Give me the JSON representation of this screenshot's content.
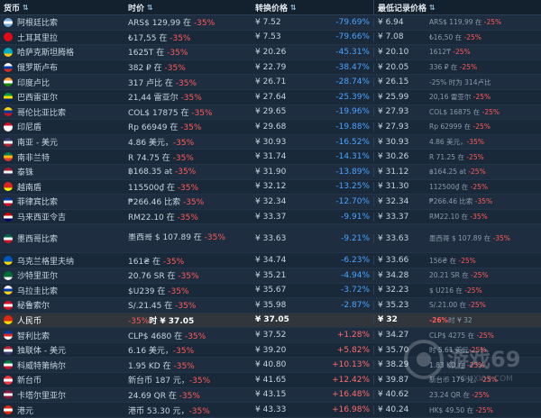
{
  "headers": {
    "currency": "货币",
    "price": "时价",
    "converted": "转换价格",
    "lowest": "最低记录价格"
  },
  "rows": [
    {
      "flag": [
        "#74acdf",
        "#ffffff",
        "#74acdf"
      ],
      "name": "阿根廷比索",
      "price": "ARS$ 129,99 在 ",
      "pdisc": "-35%",
      "conv": "¥ 7.52",
      "pct": "-79.69%",
      "pctType": "neg",
      "low": "¥ 6.94",
      "lowp": "ARS$ 119,99 在 ",
      "ldisc": "-25%"
    },
    {
      "flag": [
        "#e30a17",
        "#e30a17",
        "#e30a17"
      ],
      "name": "土耳其里拉",
      "price": "₺17,55 在 ",
      "pdisc": "-35%",
      "conv": "¥ 7.53",
      "pct": "-79.66%",
      "pctType": "neg",
      "low": "¥ 7.08",
      "lowp": "₺16,50 在 ",
      "ldisc": "-25%"
    },
    {
      "flag": [
        "#00abc2",
        "#00abc2",
        "#fec50c"
      ],
      "name": "哈萨克斯坦腾格",
      "price": "1625T 在 ",
      "pdisc": "-35%",
      "conv": "¥ 20.26",
      "pct": "-45.31%",
      "pctType": "neg",
      "low": "¥ 20.10",
      "lowp": "1612₸ ",
      "ldisc": "-25%"
    },
    {
      "flag": [
        "#ffffff",
        "#0039a6",
        "#d52b1e"
      ],
      "name": "俄罗斯卢布",
      "price": "382 ₽ 在 ",
      "pdisc": "-35%",
      "conv": "¥ 22.79",
      "pct": "-38.47%",
      "pctType": "neg",
      "low": "¥ 20.05",
      "lowp": "336 ₽ 在 ",
      "ldisc": "-25%"
    },
    {
      "flag": [
        "#ff9933",
        "#ffffff",
        "#138808"
      ],
      "name": "印度卢比",
      "price": "317 卢比 在 ",
      "pdisc": "-35%",
      "conv": "¥ 26.71",
      "pct": "-28.74%",
      "pctType": "neg",
      "low": "¥ 26.15",
      "lowp": "-25% 时为 314卢比",
      "ldisc": ""
    },
    {
      "flag": [
        "#009c3b",
        "#ffdf00",
        "#002776"
      ],
      "name": "巴西雷亚尔",
      "price": "21,44 雷亚尔 ",
      "pdisc": "-35%",
      "conv": "¥ 27.64",
      "pct": "-25.39%",
      "pctType": "neg",
      "low": "¥ 25.99",
      "lowp": "20,16 雷亚尔 ",
      "ldisc": "-25%"
    },
    {
      "flag": [
        "#fcd116",
        "#003893",
        "#ce1126"
      ],
      "name": "哥伦比亚比索",
      "price": "COL$ 17875 在 ",
      "pdisc": "-35%",
      "conv": "¥ 29.65",
      "pct": "-19.96%",
      "pctType": "neg",
      "low": "¥ 27.93",
      "lowp": "COL$ 16875 在 ",
      "ldisc": "-25%"
    },
    {
      "flag": [
        "#ce1126",
        "#ffffff",
        "#ffffff"
      ],
      "name": "印尼盾",
      "price": "Rp 66949 在 ",
      "pdisc": "-35%",
      "conv": "¥ 29.68",
      "pct": "-19.88%",
      "pctType": "neg",
      "low": "¥ 27.93",
      "lowp": "Rp 62999 在 ",
      "ldisc": "-25%"
    },
    {
      "flag": [
        "#3c3b6e",
        "#ffffff",
        "#b22234"
      ],
      "name": "南亚 - 美元",
      "price": "4.86 美元，",
      "pdisc": "-35%",
      "conv": "¥ 30.93",
      "pct": "-16.52%",
      "pctType": "neg",
      "low": "¥ 30.93",
      "lowp": "4.86 美元，",
      "ldisc": "-35%"
    },
    {
      "flag": [
        "#007a4d",
        "#ffb612",
        "#de3831"
      ],
      "name": "南非兰特",
      "price": "R 74.75 在 ",
      "pdisc": "-35%",
      "conv": "¥ 31.74",
      "pct": "-14.31%",
      "pctType": "neg",
      "low": "¥ 30.26",
      "lowp": "R 71.25 在 ",
      "ldisc": "-25%"
    },
    {
      "flag": [
        "#a51931",
        "#f4f5f8",
        "#2d2a4a"
      ],
      "name": "泰铢",
      "price": "฿168.35 at ",
      "pdisc": "-35%",
      "conv": "¥ 31.90",
      "pct": "-13.89%",
      "pctType": "neg",
      "low": "¥ 31.12",
      "lowp": "฿164.25 at ",
      "ldisc": "-25%"
    },
    {
      "flag": [
        "#da251d",
        "#da251d",
        "#ffff00"
      ],
      "name": "越南盾",
      "price": "115500₫ 在 ",
      "pdisc": "-35%",
      "conv": "¥ 32.12",
      "pct": "-13.25%",
      "pctType": "neg",
      "low": "¥ 31.30",
      "lowp": "112500₫ 在 ",
      "ldisc": "-25%"
    },
    {
      "flag": [
        "#0038a8",
        "#ffffff",
        "#ce1126"
      ],
      "name": "菲律宾比索",
      "price": "₱266.46 比索 ",
      "pdisc": "-35%",
      "conv": "¥ 32.34",
      "pct": "-12.70%",
      "pctType": "neg",
      "low": "¥ 32.34",
      "lowp": "₱266.46 比索 ",
      "ldisc": "-35%"
    },
    {
      "flag": [
        "#cc0001",
        "#ffffff",
        "#010066"
      ],
      "name": "马来西亚令吉",
      "price": "RM22.10 在 ",
      "pdisc": "-35%",
      "conv": "¥ 33.37",
      "pct": "-9.91%",
      "pctType": "neg",
      "low": "¥ 33.37",
      "lowp": "RM22.10 在 ",
      "ldisc": "-35%"
    },
    {
      "flag": [
        "#006847",
        "#ffffff",
        "#ce1126"
      ],
      "name": "墨西哥比索",
      "price": "墨西哥 $ 107.89 在 ",
      "pdisc": "-35%",
      "conv": "¥ 33.63",
      "pct": "-9.21%",
      "pctType": "neg",
      "low": "¥ 33.63",
      "lowp": "墨西哥 $ 107.89 在 ",
      "ldisc": "-35%",
      "tall": true
    },
    {
      "flag": [
        "#0057b7",
        "#0057b7",
        "#ffd700"
      ],
      "name": "乌克兰格里夫纳",
      "price": "161₴ 在 ",
      "pdisc": "-35%",
      "conv": "¥ 34.74",
      "pct": "-6.23%",
      "pctType": "neg",
      "low": "¥ 33.66",
      "lowp": "156₴ 在 ",
      "ldisc": "-25%"
    },
    {
      "flag": [
        "#006c35",
        "#006c35",
        "#ffffff"
      ],
      "name": "沙特里亚尔",
      "price": "20.76 SR 在 ",
      "pdisc": "-35%",
      "conv": "¥ 35.21",
      "pct": "-4.94%",
      "pctType": "neg",
      "low": "¥ 34.28",
      "lowp": "20.21 SR 在 ",
      "ldisc": "-25%"
    },
    {
      "flag": [
        "#ffffff",
        "#0038a8",
        "#fcd116"
      ],
      "name": "乌拉圭比索",
      "price": "$U239 在 ",
      "pdisc": "-35%",
      "conv": "¥ 35.67",
      "pct": "-3.72%",
      "pctType": "neg",
      "low": "¥ 32.23",
      "lowp": "$ U216 在 ",
      "ldisc": "-25%"
    },
    {
      "flag": [
        "#d91023",
        "#ffffff",
        "#d91023"
      ],
      "name": "秘鲁索尔",
      "price": "S/.21.45 在 ",
      "pdisc": "-35%",
      "conv": "¥ 35.98",
      "pct": "-2.87%",
      "pctType": "neg",
      "low": "¥ 35.23",
      "lowp": "S/.21.00 在 ",
      "ldisc": "-25%"
    },
    {
      "flag": [
        "#de2910",
        "#de2910",
        "#ffde00"
      ],
      "name": "人民币",
      "price": "时 ¥ 37.05",
      "pdisc": "-35%",
      "conv": "¥ 37.05",
      "pct": "",
      "pctType": "none",
      "low": "¥ 32",
      "lowp": "时 ¥ 32",
      "ldisc": "-26%",
      "cn": true
    },
    {
      "flag": [
        "#0039a6",
        "#d52b1e",
        "#ffffff"
      ],
      "name": "智利比索",
      "price": "CLP$ 4680 在 ",
      "pdisc": "-35%",
      "conv": "¥ 37.52",
      "pct": "+1.28%",
      "pctType": "pos",
      "low": "¥ 34.27",
      "lowp": "CLP$ 4275 在 ",
      "ldisc": "-25%"
    },
    {
      "flag": [
        "#b22234",
        "#ffffff",
        "#3c3b6e"
      ],
      "name": "独联体 - 美元",
      "price": "6.16 美元，",
      "pdisc": "-35%",
      "conv": "¥ 39.20",
      "pct": "+5.82%",
      "pctType": "pos",
      "low": "¥ 35.70",
      "lowp": "时 5.61 美元",
      "ldisc": "-25%"
    },
    {
      "flag": [
        "#007a3d",
        "#ffffff",
        "#ce1126"
      ],
      "name": "科威特第纳尔",
      "price": "1.95 KD 在 ",
      "pdisc": "-35%",
      "conv": "¥ 40.80",
      "pct": "+10.13%",
      "pctType": "pos",
      "low": "¥ 38.29",
      "lowp": "1.83 KD 在 ",
      "ldisc": "-25%"
    },
    {
      "flag": [
        "#ef3340",
        "#ffffff",
        "#ef3340"
      ],
      "name": "新台币",
      "price": "新台币 187 元，",
      "pdisc": "-35%",
      "conv": "¥ 41.65",
      "pct": "+12.42%",
      "pctType": "pos",
      "low": "¥ 39.87",
      "lowp": "新台币 179 元，",
      "ldisc": "-25%"
    },
    {
      "flag": [
        "#8a1538",
        "#ffffff",
        "#8a1538"
      ],
      "name": "卡塔尔里亚尔",
      "price": "24.69 QR 在 ",
      "pdisc": "-35%",
      "conv": "¥ 43.15",
      "pct": "+16.48%",
      "pctType": "pos",
      "low": "¥ 40.62",
      "lowp": "23.24 QR 在 ",
      "ldisc": "-25%"
    },
    {
      "flag": [
        "#de2910",
        "#ffffff",
        "#de2910"
      ],
      "name": "港元",
      "price": "港币 53.30 元，",
      "pdisc": "-35%",
      "conv": "¥ 43.33",
      "pct": "+16.98%",
      "pctType": "pos",
      "low": "¥ 40.24",
      "lowp": "HK$ 49.50 在 ",
      "ldisc": "-25%"
    }
  ],
  "watermark": "游戏69",
  "watermark_sub": "YOUXI69.COM",
  "colors": {
    "bg": "#1b2838",
    "neg": "#4aa3ff",
    "pos": "#ff6b6b",
    "discount": "#ff5a5a"
  }
}
